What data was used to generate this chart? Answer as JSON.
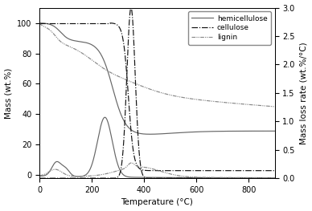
{
  "xlabel": "Temperature (°C)",
  "ylabel_left": "Mass (wt.%)",
  "ylabel_right": "Mass loss rate (wt.%/°C)",
  "xlim": [
    0,
    900
  ],
  "ylim_left": [
    -2,
    110
  ],
  "ylim_right": [
    0.0,
    3.0
  ],
  "yticks_left": [
    0,
    20,
    40,
    60,
    80,
    100
  ],
  "yticks_right": [
    0.0,
    0.5,
    1.0,
    1.5,
    2.0,
    2.5,
    3.0
  ],
  "xticks": [
    0,
    200,
    400,
    600,
    800
  ],
  "legend_labels": [
    "hemicellulose",
    "cellulose",
    "lignin"
  ],
  "background_color": "#ffffff"
}
